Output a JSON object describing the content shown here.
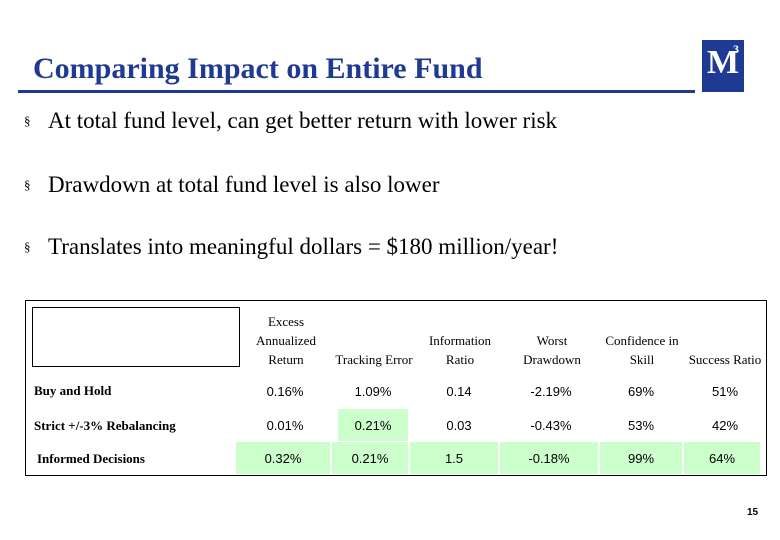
{
  "title": "Comparing Impact on Entire Fund",
  "logo": {
    "letter": "M",
    "superscript": "3"
  },
  "bullets": [
    "At total fund level, can get better return with lower risk",
    "Drawdown at total fund level is also lower",
    "Translates into meaningful dollars = $180 million/year!"
  ],
  "bullet_marker": "§",
  "table": {
    "headers": [
      "Excess Annualized Return",
      "Tracking Error",
      "Information Ratio",
      "Worst Drawdown",
      "Confidence in Skill",
      "Success Ratio"
    ],
    "rows": [
      {
        "label": "Buy and Hold",
        "values": [
          "0.16%",
          "1.09%",
          "0.14",
          "-2.19%",
          "69%",
          "51%"
        ]
      },
      {
        "label": "Strict +/-3% Rebalancing",
        "values": [
          "0.01%",
          "0.21%",
          "0.03",
          "-0.43%",
          "53%",
          "42%"
        ]
      },
      {
        "label": "Informed Decisions",
        "values": [
          "0.32%",
          "0.21%",
          "1.5",
          "-0.18%",
          "99%",
          "64%"
        ]
      }
    ],
    "highlight_color": "#ccffcc"
  },
  "page_number": "15",
  "colors": {
    "brand": "#1f3a93"
  }
}
